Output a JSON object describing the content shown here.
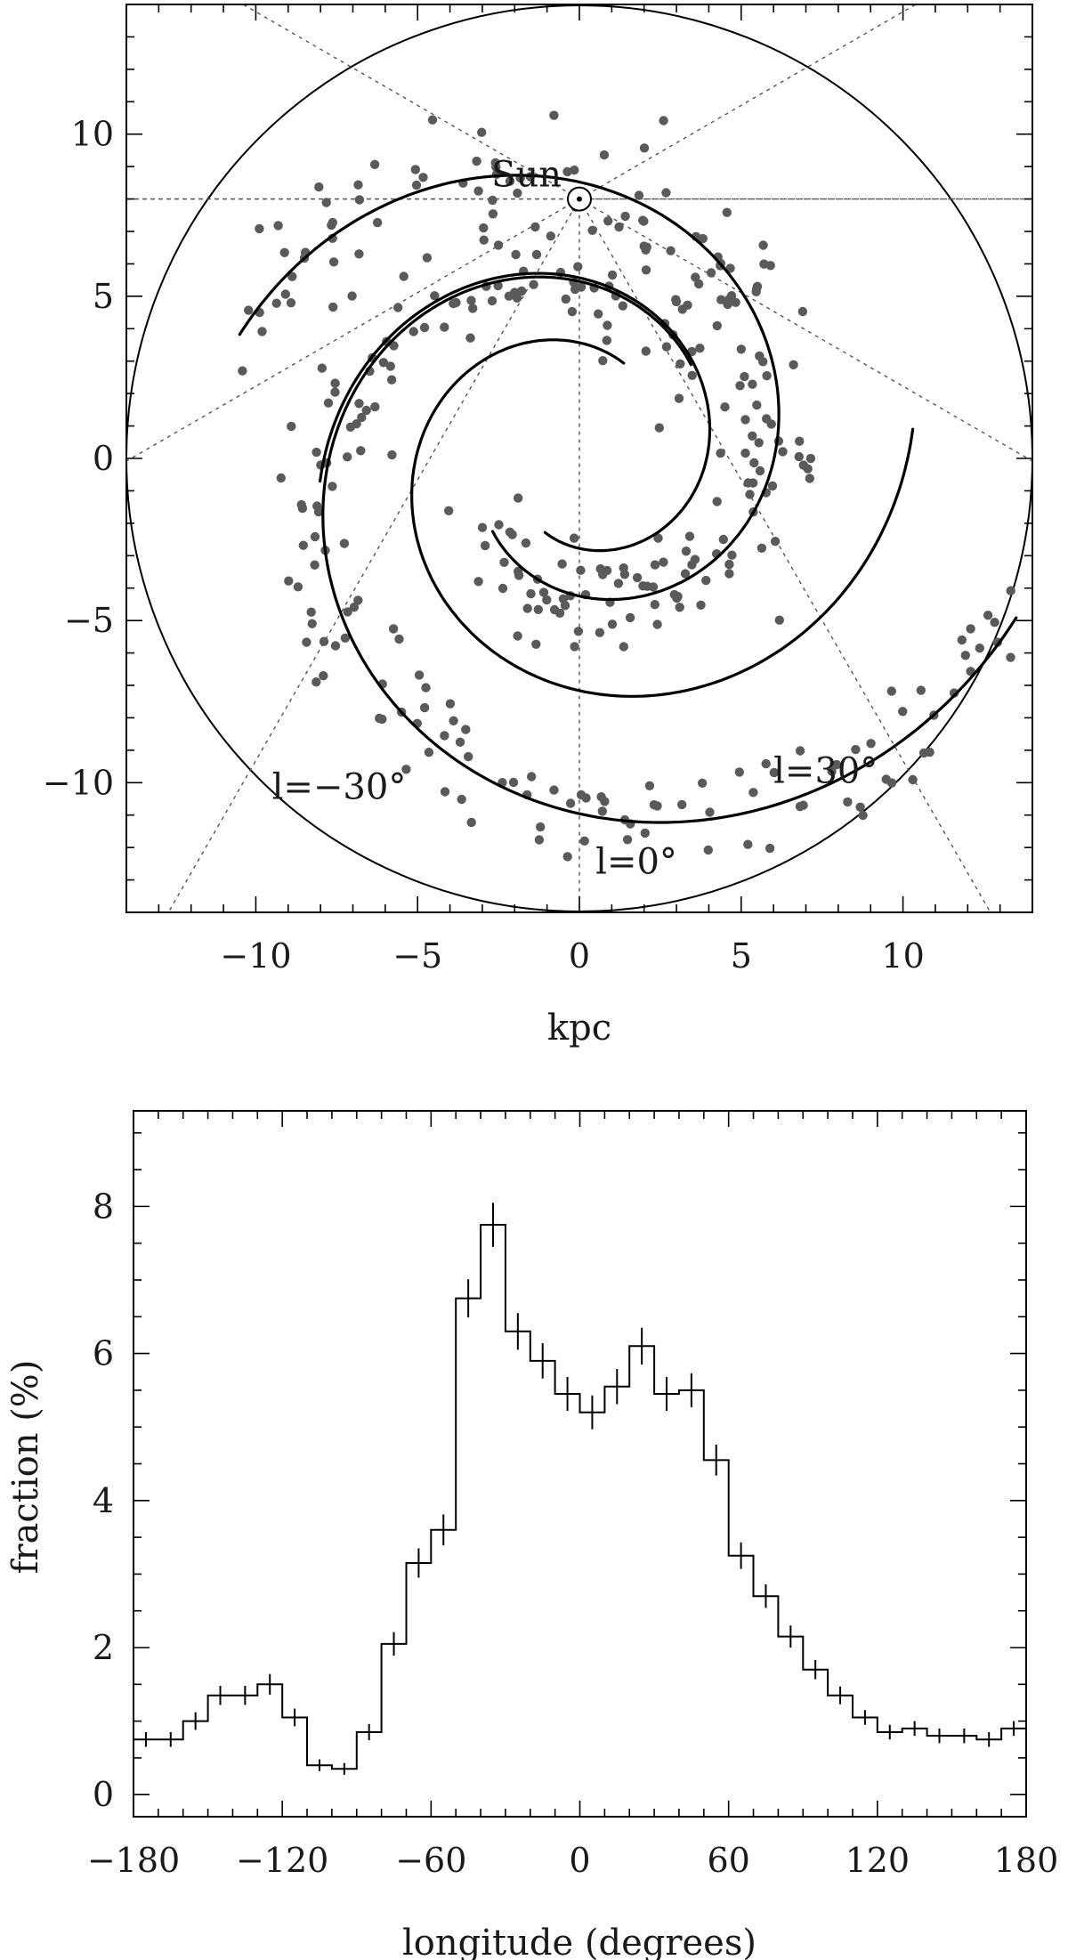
{
  "chart_data": [
    {
      "type": "scatter",
      "title": "",
      "xlabel": "kpc",
      "ylabel": "",
      "xlim": [
        -14,
        14
      ],
      "ylim": [
        -14,
        14
      ],
      "xticks": [
        "−10",
        "−5",
        "0",
        "5",
        "10"
      ],
      "xtick_values": [
        -10,
        -5,
        0,
        5,
        10
      ],
      "yticks": [
        "−10",
        "−5",
        "0",
        "5",
        "10"
      ],
      "ytick_values": [
        -10,
        -5,
        0,
        5,
        10
      ],
      "sun": {
        "label": "Sun",
        "x": 0,
        "y": 8
      },
      "outer_circle_radius": 14,
      "longitude_lines_deg": [
        0,
        30,
        -30,
        60,
        -60,
        90,
        -90,
        120,
        -120
      ],
      "annotations": [
        {
          "text": "l=0°",
          "x": 0.5,
          "y": -12.8
        },
        {
          "text": "l=30°",
          "x": 6.0,
          "y": -10.0
        },
        {
          "text": "l=−30°",
          "x": -9.5,
          "y": -10.5
        }
      ],
      "spiral_arms": [
        {
          "r0": 4.5,
          "theta_start_deg": 40,
          "sweep_deg": 300,
          "pitch_deg": 12.5
        },
        {
          "r0": 3.5,
          "theta_start_deg": 220,
          "sweep_deg": 300,
          "pitch_deg": 12.5
        }
      ],
      "points_per_arm": 190,
      "scatter_spread_kpc": 0.8
    },
    {
      "type": "histogram",
      "title": "",
      "xlabel": "longitude (degrees)",
      "ylabel": "fraction (%)",
      "xlim": [
        -180,
        180
      ],
      "ylim": [
        -0.3,
        9.3
      ],
      "xticks": [
        "−180",
        "−120",
        "−60",
        "0",
        "60",
        "120",
        "180"
      ],
      "xtick_values": [
        -180,
        -120,
        -60,
        0,
        60,
        120,
        180
      ],
      "yticks": [
        "0",
        "2",
        "4",
        "6",
        "8"
      ],
      "ytick_values": [
        0,
        2,
        4,
        6,
        8
      ],
      "bin_width": 10,
      "bin_centers": [
        -175,
        -165,
        -155,
        -145,
        -135,
        -125,
        -115,
        -105,
        -95,
        -85,
        -75,
        -65,
        -55,
        -45,
        -35,
        -25,
        -15,
        -5,
        5,
        15,
        25,
        35,
        45,
        55,
        65,
        75,
        85,
        95,
        105,
        115,
        125,
        135,
        145,
        155,
        165,
        175
      ],
      "values": [
        0.75,
        0.75,
        1.0,
        1.35,
        1.35,
        1.5,
        1.05,
        0.4,
        0.35,
        0.85,
        2.05,
        3.15,
        3.6,
        6.75,
        7.75,
        6.3,
        5.9,
        5.45,
        5.2,
        5.55,
        6.1,
        5.45,
        5.5,
        4.55,
        3.25,
        2.7,
        2.15,
        1.7,
        1.35,
        1.05,
        0.85,
        0.9,
        0.8,
        0.8,
        0.75,
        0.9
      ],
      "errors": [
        0.1,
        0.1,
        0.12,
        0.13,
        0.13,
        0.14,
        0.12,
        0.08,
        0.08,
        0.11,
        0.16,
        0.2,
        0.21,
        0.26,
        0.3,
        0.25,
        0.24,
        0.23,
        0.23,
        0.24,
        0.25,
        0.23,
        0.23,
        0.21,
        0.18,
        0.16,
        0.15,
        0.13,
        0.12,
        0.1,
        0.1,
        0.1,
        0.1,
        0.1,
        0.1,
        0.1
      ]
    }
  ]
}
